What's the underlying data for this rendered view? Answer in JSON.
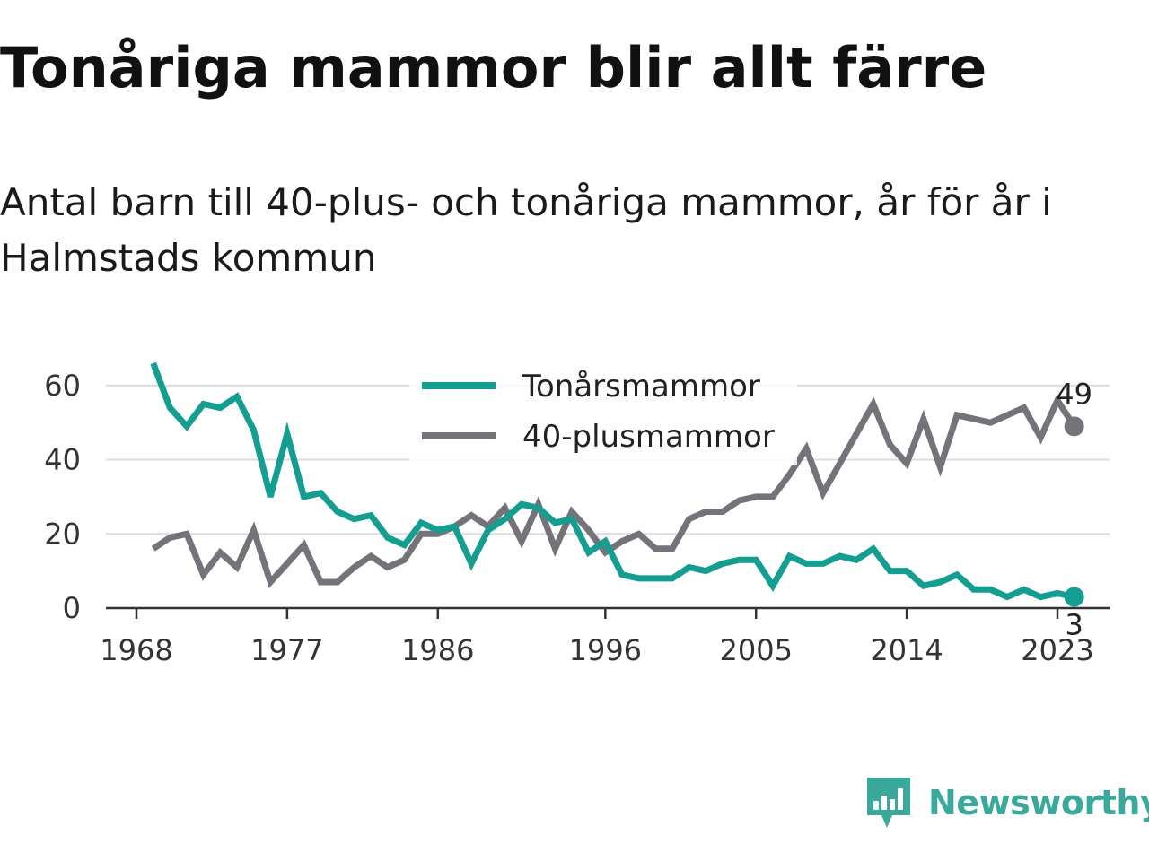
{
  "title": "Tonåriga mammor blir allt färre",
  "subtitle": "Antal barn till 40-plus- och tonåriga mammor, år för år i Halmstads kommun",
  "brand": {
    "name": "Newsworthy",
    "color": "#3aa89a",
    "icon": "newsworthy-logo-icon"
  },
  "chart_data": {
    "type": "line",
    "x": [
      1969,
      1970,
      1971,
      1972,
      1973,
      1974,
      1975,
      1976,
      1977,
      1978,
      1979,
      1980,
      1981,
      1982,
      1983,
      1984,
      1985,
      1986,
      1987,
      1988,
      1989,
      1990,
      1991,
      1992,
      1993,
      1994,
      1995,
      1996,
      1997,
      1998,
      1999,
      2000,
      2001,
      2002,
      2003,
      2004,
      2005,
      2006,
      2007,
      2008,
      2009,
      2010,
      2011,
      2012,
      2013,
      2014,
      2015,
      2016,
      2017,
      2018,
      2019,
      2020,
      2021,
      2022,
      2023,
      2024
    ],
    "series": [
      {
        "name": "Tonårsmammor",
        "color": "#139e91",
        "values": [
          66,
          54,
          49,
          55,
          54,
          57,
          48,
          30,
          47,
          30,
          31,
          26,
          24,
          25,
          19,
          17,
          23,
          21,
          22,
          12,
          21,
          24,
          28,
          27,
          23,
          24,
          15,
          18,
          9,
          8,
          8,
          8,
          11,
          10,
          12,
          13,
          13,
          6,
          14,
          12,
          12,
          14,
          13,
          16,
          10,
          10,
          6,
          7,
          9,
          5,
          5,
          3,
          5,
          3,
          4,
          3
        ]
      },
      {
        "name": "40-plusmammor",
        "color": "#74737a",
        "values": [
          16,
          19,
          20,
          9,
          15,
          11,
          21,
          7,
          12,
          17,
          7,
          7,
          11,
          14,
          11,
          13,
          20,
          20,
          22,
          25,
          22,
          27,
          18,
          28,
          16,
          26,
          21,
          15,
          18,
          20,
          16,
          16,
          24,
          26,
          26,
          29,
          30,
          30,
          36,
          43,
          31,
          39,
          47,
          55,
          44,
          39,
          51,
          38,
          52,
          51,
          50,
          52,
          54,
          46,
          56,
          49
        ]
      }
    ],
    "xticks": [
      "1968",
      "1977",
      "1986",
      "1996",
      "2005",
      "2014",
      "2023"
    ],
    "xtick_values": [
      1968,
      1977,
      1986,
      1996,
      2005,
      2014,
      2023
    ],
    "yticks": [
      "0",
      "20",
      "40",
      "60"
    ],
    "ytick_values": [
      0,
      20,
      40,
      60
    ],
    "xlim": [
      1968,
      2026
    ],
    "ylim": [
      0,
      66
    ],
    "end_labels": [
      "3",
      "49"
    ],
    "grid": true,
    "legend_position": "top-center"
  }
}
